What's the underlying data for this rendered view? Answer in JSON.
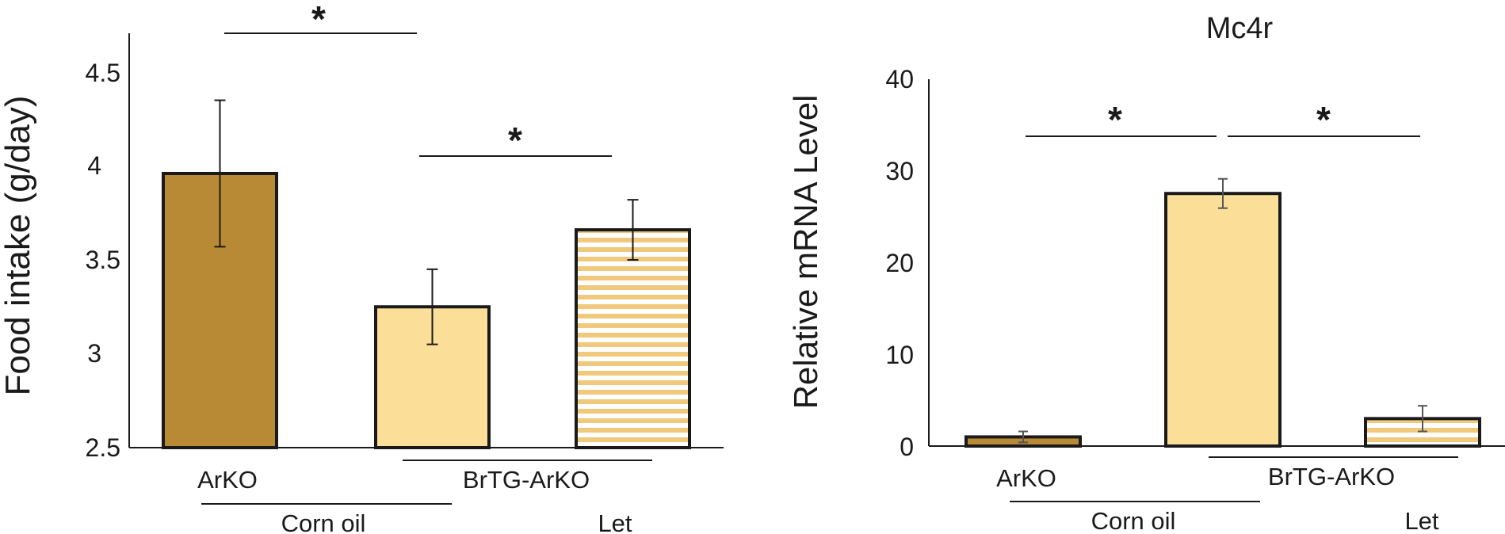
{
  "chart_data": [
    {
      "type": "bar",
      "title": "",
      "ylabel": "Food intake (g/day)",
      "xlabel": "",
      "ylim": [
        2.5,
        4.5
      ],
      "yticks": [
        "2.5",
        "3",
        "3.5",
        "4",
        "4.5"
      ],
      "categories": [
        "ArKO",
        "BrTG-ArKO",
        ""
      ],
      "bars": [
        {
          "value": 3.96,
          "error": 0.39,
          "fill": "solid-dark"
        },
        {
          "value": 3.25,
          "error": 0.2,
          "fill": "solid-light"
        },
        {
          "value": 3.66,
          "error": 0.16,
          "fill": "striped"
        }
      ],
      "group_labels": [
        "Corn oil",
        "Let"
      ],
      "significance": [
        "*",
        "*"
      ],
      "grid": false,
      "legend": "none"
    },
    {
      "type": "bar",
      "title": "Mc4r",
      "ylabel": "Relative mRNA Level",
      "xlabel": "",
      "ylim": [
        0,
        40
      ],
      "yticks": [
        "0",
        "10",
        "20",
        "30",
        "40"
      ],
      "categories": [
        "ArKO",
        "BrTG-ArKO",
        ""
      ],
      "bars": [
        {
          "value": 1.0,
          "error": 0.6,
          "fill": "solid-dark"
        },
        {
          "value": 27.6,
          "error": 1.6,
          "fill": "solid-light"
        },
        {
          "value": 3.0,
          "error": 1.4,
          "fill": "striped"
        }
      ],
      "group_labels": [
        "Corn oil",
        "Let"
      ],
      "significance": [
        "*",
        "*"
      ],
      "grid": false,
      "legend": "none"
    }
  ],
  "colors": {
    "dark_bar": "#b98a35",
    "light_bar": "#fbde98",
    "stripe_bg": "#ffffff",
    "outline": "#1a1a1a"
  }
}
